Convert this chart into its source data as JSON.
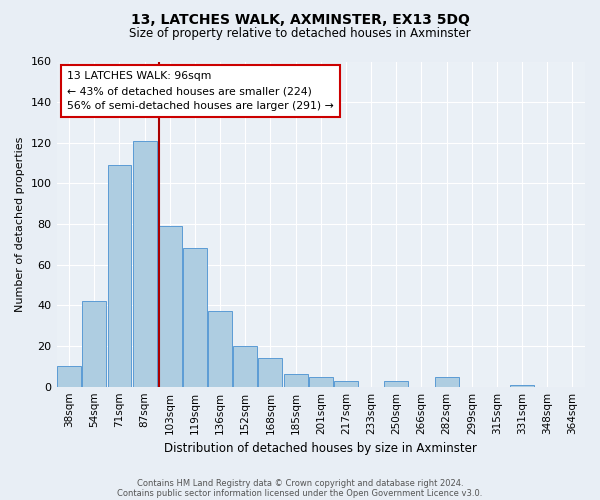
{
  "title": "13, LATCHES WALK, AXMINSTER, EX13 5DQ",
  "subtitle": "Size of property relative to detached houses in Axminster",
  "xlabel": "Distribution of detached houses by size in Axminster",
  "ylabel": "Number of detached properties",
  "footnote1": "Contains HM Land Registry data © Crown copyright and database right 2024.",
  "footnote2": "Contains public sector information licensed under the Open Government Licence v3.0.",
  "categories": [
    "38sqm",
    "54sqm",
    "71sqm",
    "87sqm",
    "103sqm",
    "119sqm",
    "136sqm",
    "152sqm",
    "168sqm",
    "185sqm",
    "201sqm",
    "217sqm",
    "233sqm",
    "250sqm",
    "266sqm",
    "282sqm",
    "299sqm",
    "315sqm",
    "331sqm",
    "348sqm",
    "364sqm"
  ],
  "values": [
    10,
    42,
    109,
    121,
    79,
    68,
    37,
    20,
    14,
    6,
    5,
    3,
    0,
    3,
    0,
    5,
    0,
    0,
    1,
    0,
    0
  ],
  "bar_color": "#aecde1",
  "bar_edge_color": "#5b9bd5",
  "annotation_title": "13 LATCHES WALK: 96sqm",
  "annotation_line1": "← 43% of detached houses are smaller (224)",
  "annotation_line2": "56% of semi-detached houses are larger (291) →",
  "annotation_box_edge": "#cc0000",
  "ylim": [
    0,
    160
  ],
  "yticks": [
    0,
    20,
    40,
    60,
    80,
    100,
    120,
    140,
    160
  ],
  "bg_color": "#e8eef5",
  "plot_bg_color": "#eaf0f6",
  "grid_color": "#ffffff",
  "line_color": "#aa0000",
  "line_bar_index": 3.56
}
